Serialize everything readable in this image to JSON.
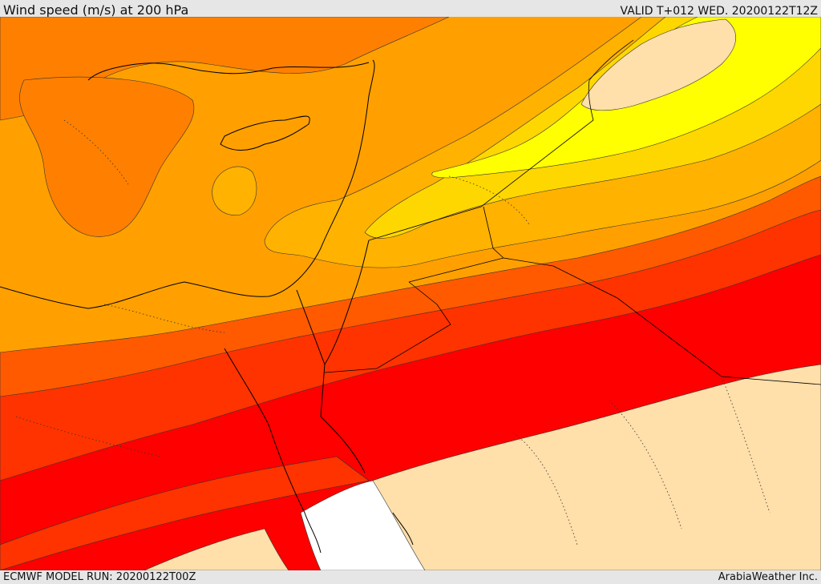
{
  "header": {
    "title": "Wind speed (m/s) at 200 hPa",
    "valid": "VALID T+012 WED. 20200122T12Z"
  },
  "footer": {
    "model_run": "ECMWF MODEL RUN: 20200122T00Z",
    "credit": "ArabiaWeather Inc."
  },
  "colors": {
    "band_low": "#ffdfaa",
    "band_yellow": "#ffff00",
    "band_yellow_orange": "#ffd700",
    "band_light_orange": "#ffb200",
    "band_orange": "#ffa000",
    "band_dark_orange": "#ff8000",
    "band_red_orange": "#ff5a00",
    "band_orange_red": "#ff3300",
    "band_red": "#ff0000",
    "band_none": "#ffffff",
    "coastline": "#000000"
  }
}
